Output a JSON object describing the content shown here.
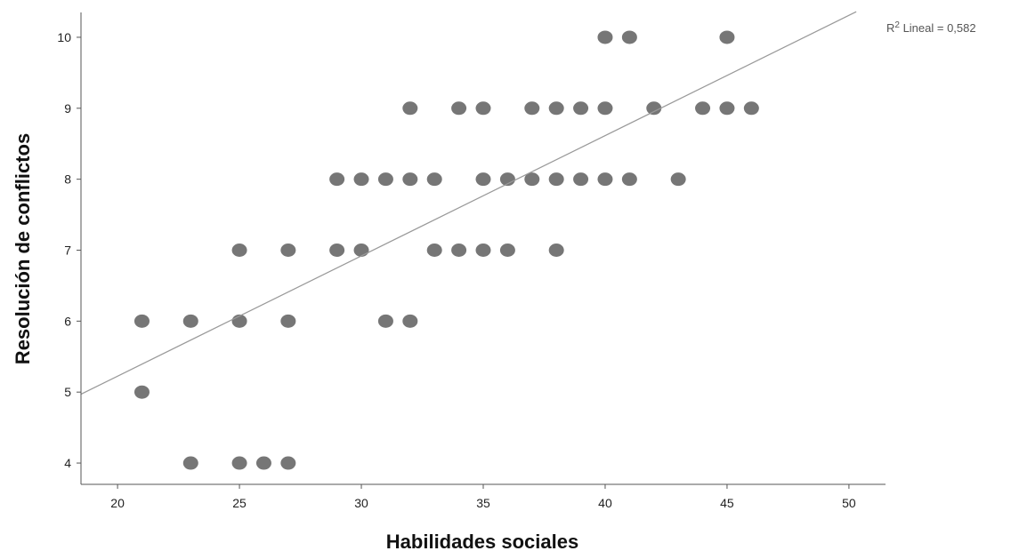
{
  "chart_data": {
    "type": "scatter",
    "xlabel": "Habilidades sociales",
    "ylabel": "Resolución de conflictos",
    "xlim": [
      18.5,
      51.5
    ],
    "ylim": [
      3.7,
      10.35
    ],
    "xticks": [
      20,
      25,
      30,
      35,
      40,
      45,
      50
    ],
    "yticks": [
      4,
      5,
      6,
      7,
      8,
      9,
      10
    ],
    "grid": false,
    "marker_color": "#767676",
    "line_color": "#999999",
    "points": [
      {
        "x": 21,
        "y": 6
      },
      {
        "x": 21,
        "y": 5
      },
      {
        "x": 23,
        "y": 6
      },
      {
        "x": 23,
        "y": 4
      },
      {
        "x": 25,
        "y": 7
      },
      {
        "x": 25,
        "y": 6
      },
      {
        "x": 25,
        "y": 4
      },
      {
        "x": 26,
        "y": 4
      },
      {
        "x": 27,
        "y": 7
      },
      {
        "x": 27,
        "y": 6
      },
      {
        "x": 27,
        "y": 4
      },
      {
        "x": 29,
        "y": 8
      },
      {
        "x": 29,
        "y": 7
      },
      {
        "x": 30,
        "y": 8
      },
      {
        "x": 30,
        "y": 7
      },
      {
        "x": 31,
        "y": 8
      },
      {
        "x": 31,
        "y": 6
      },
      {
        "x": 32,
        "y": 9
      },
      {
        "x": 32,
        "y": 8
      },
      {
        "x": 32,
        "y": 6
      },
      {
        "x": 33,
        "y": 8
      },
      {
        "x": 33,
        "y": 7
      },
      {
        "x": 34,
        "y": 9
      },
      {
        "x": 34,
        "y": 7
      },
      {
        "x": 35,
        "y": 9
      },
      {
        "x": 35,
        "y": 8
      },
      {
        "x": 35,
        "y": 7
      },
      {
        "x": 36,
        "y": 8
      },
      {
        "x": 36,
        "y": 7
      },
      {
        "x": 37,
        "y": 9
      },
      {
        "x": 37,
        "y": 8
      },
      {
        "x": 38,
        "y": 9
      },
      {
        "x": 38,
        "y": 8
      },
      {
        "x": 38,
        "y": 7
      },
      {
        "x": 39,
        "y": 9
      },
      {
        "x": 39,
        "y": 8
      },
      {
        "x": 40,
        "y": 10
      },
      {
        "x": 40,
        "y": 9
      },
      {
        "x": 40,
        "y": 8
      },
      {
        "x": 41,
        "y": 10
      },
      {
        "x": 41,
        "y": 8
      },
      {
        "x": 42,
        "y": 9
      },
      {
        "x": 43,
        "y": 8
      },
      {
        "x": 44,
        "y": 9
      },
      {
        "x": 45,
        "y": 10
      },
      {
        "x": 45,
        "y": 9
      },
      {
        "x": 46,
        "y": 9
      }
    ],
    "fit_line": {
      "label_prefix": "R",
      "label_sup": "2",
      "label_rest": " Lineal = 0,582",
      "x0": 18.5,
      "y0": 4.97,
      "x1": 50.3,
      "y1": 10.36
    }
  }
}
